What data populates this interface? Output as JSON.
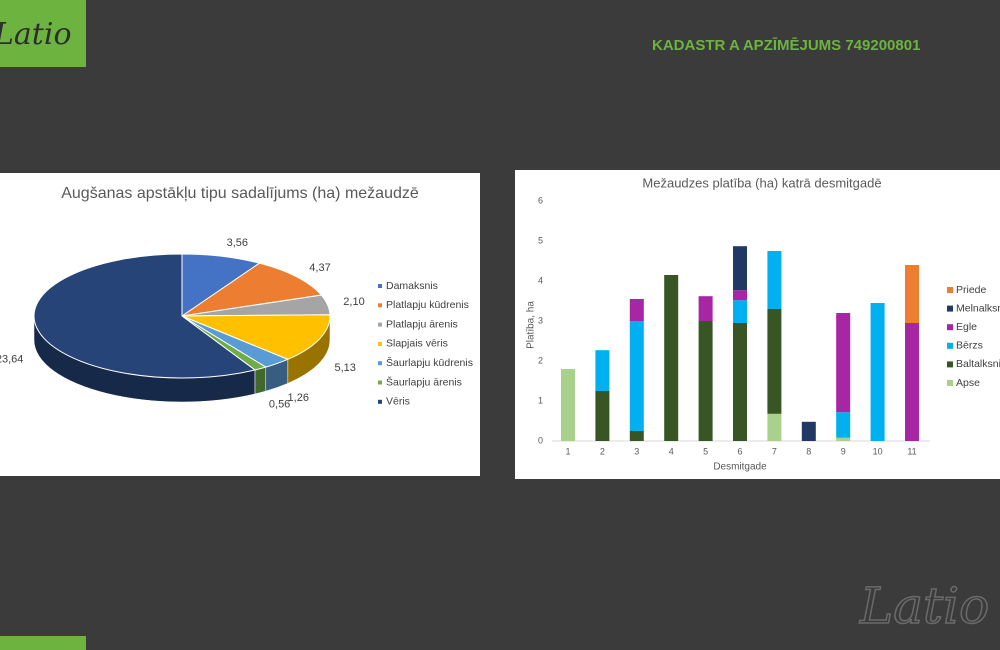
{
  "header": {
    "logo": "Latio",
    "title": "KADASTR A  APZĪMĒJUMS 749200801"
  },
  "footer": {
    "logo": "Latio"
  },
  "chart_data": [
    {
      "type": "pie",
      "title": "Augšanas apstākļu tipu sadalījums (ha) mežaudzē",
      "categories": [
        "Damaksnis",
        "Platlapju kūdrenis",
        "Platlapju ārenis",
        "Slapjais vēris",
        "Šaurlapju kūdrenis",
        "Šaurlapju ārenis",
        "Vēris"
      ],
      "values": [
        3.56,
        4.37,
        2.1,
        5.13,
        1.26,
        0.56,
        23.64
      ],
      "value_labels": [
        "3,56",
        "4,37",
        "2,10",
        "5,13",
        "1,26",
        "0,56",
        "23,64"
      ],
      "colors": [
        "#4472c4",
        "#ed7d31",
        "#a5a5a5",
        "#ffc000",
        "#5b9bd5",
        "#70ad47",
        "#264478"
      ],
      "legend": "right"
    },
    {
      "type": "stacked_bar",
      "title": "Mežaudzes platība (ha) katrā desmitgadē",
      "x_label": "Desmitgade",
      "y_label": "Platība, ha",
      "categories": [
        "1",
        "2",
        "3",
        "4",
        "5",
        "6",
        "7",
        "8",
        "9",
        "10",
        "11"
      ],
      "series": [
        {
          "name": "Apse",
          "color": "#a9d18e",
          "values": [
            1.8,
            null,
            null,
            null,
            null,
            null,
            0.68,
            null,
            0.08,
            null,
            null
          ]
        },
        {
          "name": "Baltalksnis",
          "color": "#375623",
          "values": [
            null,
            1.25,
            0.25,
            4.15,
            3.0,
            2.95,
            2.62,
            null,
            null,
            null,
            null
          ]
        },
        {
          "name": "Bērzs",
          "color": "#00b0f0",
          "values": [
            null,
            1.02,
            2.75,
            null,
            null,
            0.57,
            1.45,
            null,
            0.64,
            3.45,
            null
          ]
        },
        {
          "name": "Egle",
          "color": "#a626a4",
          "values": [
            null,
            null,
            0.55,
            null,
            0.62,
            0.25,
            null,
            null,
            2.48,
            null,
            2.95
          ]
        },
        {
          "name": "Melnalksnis",
          "color": "#1f3864",
          "values": [
            null,
            null,
            null,
            null,
            null,
            1.1,
            null,
            0.48,
            null,
            null,
            null
          ]
        },
        {
          "name": "Priede",
          "color": "#ed7d31",
          "values": [
            null,
            null,
            null,
            null,
            null,
            null,
            null,
            null,
            null,
            null,
            1.45
          ]
        }
      ],
      "ylim": [
        0,
        6
      ],
      "yticks": [
        0,
        1,
        2,
        3,
        4,
        5,
        6
      ],
      "grid": false,
      "legend": "right"
    }
  ]
}
